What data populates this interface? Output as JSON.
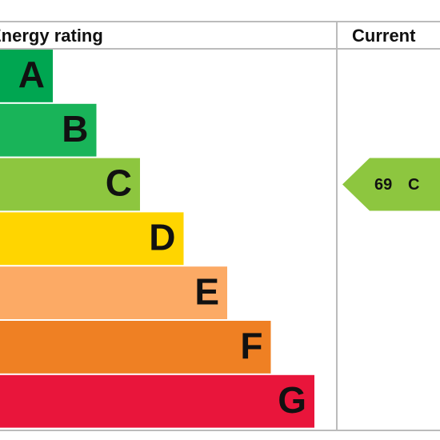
{
  "header": {
    "rating_column": "Energy rating",
    "current_column": "Current"
  },
  "bands": [
    {
      "letter": "A",
      "color": "#00a651"
    },
    {
      "letter": "B",
      "color": "#19b459"
    },
    {
      "letter": "C",
      "color": "#8dc63f"
    },
    {
      "letter": "D",
      "color": "#ffd500"
    },
    {
      "letter": "E",
      "color": "#fcaa65"
    },
    {
      "letter": "F",
      "color": "#ef8023"
    },
    {
      "letter": "G",
      "color": "#e9153b"
    }
  ],
  "current": {
    "value": 69,
    "letter": "C",
    "color": "#8dc63f"
  }
}
